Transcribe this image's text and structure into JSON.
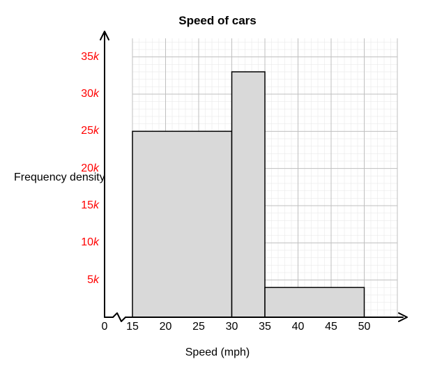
{
  "chart": {
    "type": "histogram",
    "title": "Speed of cars",
    "title_fontsize": 17,
    "title_fontweight": "bold",
    "xlabel": "Speed (mph)",
    "ylabel": "Frequency density",
    "label_fontsize": 16,
    "xlim": [
      0,
      55
    ],
    "ylim": [
      0,
      37.5
    ],
    "x_axis_break_after": 0,
    "x_axis_break_resume": 15,
    "xtick_labels": [
      0,
      15,
      20,
      25,
      30,
      35,
      40,
      45,
      50
    ],
    "ytick_values": [
      5,
      10,
      15,
      20,
      25,
      30,
      35
    ],
    "ytick_suffix": "k",
    "ytick_color": "#ff0000",
    "minor_grid_x_step": 1,
    "minor_grid_y_step": 1,
    "background_color": "#ffffff",
    "major_grid_color": "#bfbfbf",
    "minor_grid_color": "#e5e5e5",
    "axis_color": "#000000",
    "bar_fill": "#d9d9d9",
    "bar_stroke": "#000000",
    "bar_stroke_width": 1.5,
    "axis_stroke_width": 2,
    "bars": [
      {
        "x0": 15,
        "x1": 30,
        "height": 25
      },
      {
        "x0": 30,
        "x1": 35,
        "height": 33
      },
      {
        "x0": 35,
        "x1": 50,
        "height": 4
      }
    ]
  }
}
